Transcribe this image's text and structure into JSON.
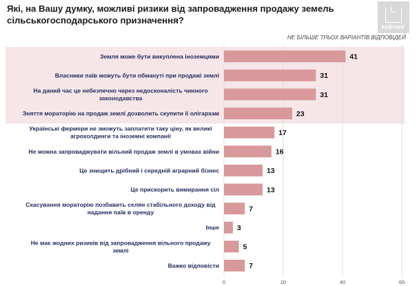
{
  "title": "Які, на Вашу думку, можливі ризики від запровадження продажу земель сільськогосподарського призначення?",
  "note": "НЕ БІЛЬШЕ ТРЬОХ ВАРІАНТІВ ВІДПОВІДЕЙ",
  "logo_text": "РЕЙТИНГ",
  "colors": {
    "bar": "#d9989a",
    "highlight_band": "#f6e6e8",
    "grid": "#d8d8d8"
  },
  "chart_data": {
    "type": "bar",
    "orientation": "horizontal",
    "title": "Які, на Вашу думку, можливі ризики від запровадження продажу земель сільськогосподарського призначення?",
    "categories": [
      [
        "Земля може бути викуплена іноземцями"
      ],
      [
        "Власники паїв можуть бути обманутi при продажі землі"
      ],
      [
        "На даний час це небезпечно через недосконалість чинного",
        "законодавства"
      ],
      [
        "Зняття мораторію на продаж землі дозволить скупити її олігархам"
      ],
      [
        "Українські фермери не зможуть заплатити таку ціну, як великі",
        "агрохолдинги та іноземні компанії"
      ],
      [
        "Не можна запроваджувати вільний продаж землі в умовах війни"
      ],
      [
        "Це знищить дрібний і середній аграрний бізнес"
      ],
      [
        "Це прискорить вимирання сіл"
      ],
      [
        "Скасування мораторію позбавить селян стабільного доходу від",
        "надання паїв в оренду"
      ],
      [
        "Інше"
      ],
      [
        "Не має жодних ризиків від запровадження вільного продажу",
        "землі"
      ],
      [
        "Важко відповісти"
      ]
    ],
    "values": [
      41,
      31,
      31,
      23,
      17,
      16,
      13,
      13,
      7,
      3,
      5,
      7
    ],
    "xlim": [
      0,
      60
    ],
    "xticks": [
      0,
      20,
      40,
      60
    ],
    "highlighted_rows": [
      0,
      1,
      2,
      3
    ],
    "grid": true,
    "legend": "none"
  }
}
